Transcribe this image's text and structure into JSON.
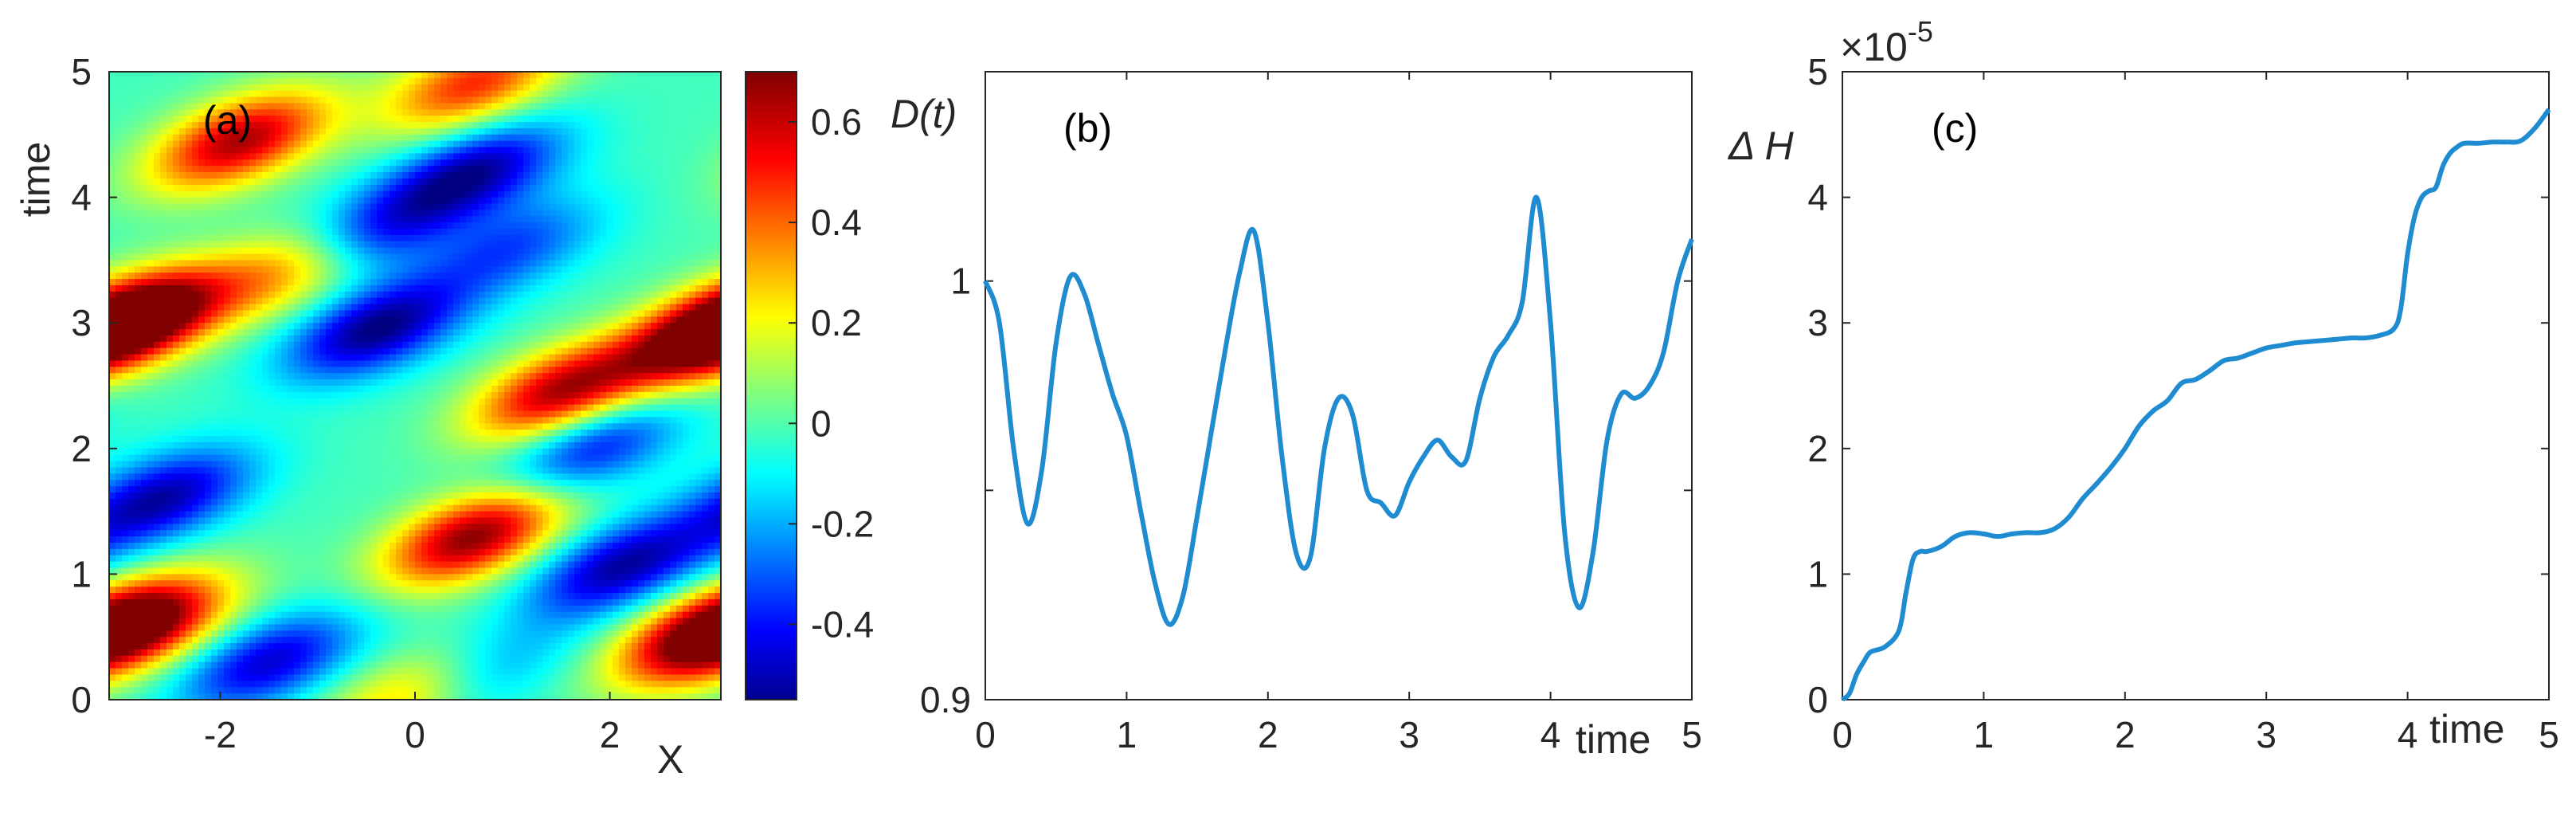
{
  "chart_data": [
    {
      "id": "a",
      "type": "heatmap",
      "panel_label": "(a)",
      "xlabel": "X",
      "ylabel": "time",
      "xlim": [
        -3.14,
        3.14
      ],
      "ylim": [
        0,
        5
      ],
      "x_ticks": [
        -2,
        0,
        2
      ],
      "x_tick_labels": [
        "-2",
        "0",
        "2"
      ],
      "y_ticks": [
        0,
        1,
        2,
        3,
        4,
        5
      ],
      "y_tick_labels": [
        "0",
        "1",
        "2",
        "3",
        "4",
        "5"
      ],
      "colormap": "jet",
      "clim": [
        -0.55,
        0.7
      ],
      "colorbar_ticks": [
        0.6,
        0.4,
        0.2,
        0,
        -0.2,
        -0.4
      ],
      "colorbar_tick_labels": [
        "0.6",
        "0.4",
        "0.2",
        "0",
        "-0.2",
        "-0.4"
      ],
      "field": {
        "description": "traveling wave pattern moving toward +X over time",
        "blobs": [
          {
            "x": -1.8,
            "t": 4.45,
            "amp": 0.65
          },
          {
            "x": 0.6,
            "t": 4.9,
            "amp": 0.5
          },
          {
            "x": -2.8,
            "t": 3.05,
            "amp": 0.65
          },
          {
            "x": -1.2,
            "t": 3.45,
            "amp": 0.45
          },
          {
            "x": 1.5,
            "t": 2.45,
            "amp": 0.65
          },
          {
            "x": 3.0,
            "t": 2.9,
            "amp": 0.6
          },
          {
            "x": 0.6,
            "t": 1.3,
            "amp": 0.7
          },
          {
            "x": -2.8,
            "t": 0.6,
            "amp": 0.6
          },
          {
            "x": 2.9,
            "t": 0.5,
            "amp": 0.55
          },
          {
            "x": 0.0,
            "t": 0.05,
            "amp": 0.4
          },
          {
            "x": 0.6,
            "t": 4.2,
            "amp": -0.5
          },
          {
            "x": -0.5,
            "t": 3.7,
            "amp": -0.45
          },
          {
            "x": -0.4,
            "t": 2.95,
            "amp": -0.55
          },
          {
            "x": 1.0,
            "t": 3.6,
            "amp": -0.3
          },
          {
            "x": -2.6,
            "t": 1.6,
            "amp": -0.5
          },
          {
            "x": 1.8,
            "t": 2.0,
            "amp": -0.4
          },
          {
            "x": 2.1,
            "t": 1.05,
            "amp": -0.5
          },
          {
            "x": -1.5,
            "t": 0.3,
            "amp": -0.45
          },
          {
            "x": 0.6,
            "t": 0.2,
            "amp": -0.3
          }
        ]
      }
    },
    {
      "id": "b",
      "type": "line",
      "panel_label": "(b)",
      "ylabel": "D(t)",
      "xlabel": "time",
      "xlim": [
        0,
        5
      ],
      "ylim": [
        0.9,
        1.05
      ],
      "x_ticks": [
        0,
        1,
        2,
        3,
        4,
        5
      ],
      "x_tick_labels": [
        "0",
        "1",
        "2",
        "3",
        "4",
        "5"
      ],
      "y_ticks": [
        0.9,
        1
      ],
      "y_tick_labels": [
        "0.9",
        "1"
      ],
      "minor_y_ticks": [
        0.95
      ],
      "color": "#1f8bd0",
      "x": [
        0,
        0.1,
        0.2,
        0.3,
        0.4,
        0.5,
        0.6,
        0.7,
        0.8,
        0.9,
        1.0,
        1.1,
        1.2,
        1.3,
        1.4,
        1.5,
        1.6,
        1.7,
        1.8,
        1.9,
        2.0,
        2.1,
        2.2,
        2.3,
        2.4,
        2.5,
        2.6,
        2.7,
        2.8,
        2.9,
        3.0,
        3.1,
        3.2,
        3.3,
        3.4,
        3.5,
        3.6,
        3.7,
        3.8,
        3.9,
        4.0,
        4.1,
        4.2,
        4.3,
        4.4,
        4.5,
        4.6,
        4.7,
        4.8,
        4.9,
        5.0
      ],
      "y": [
        1.0,
        0.99,
        0.96,
        0.942,
        0.955,
        0.985,
        1.001,
        0.997,
        0.985,
        0.973,
        0.963,
        0.945,
        0.928,
        0.918,
        0.925,
        0.944,
        0.964,
        0.984,
        1.002,
        1.012,
        0.99,
        0.958,
        0.935,
        0.934,
        0.96,
        0.972,
        0.968,
        0.95,
        0.947,
        0.944,
        0.952,
        0.958,
        0.962,
        0.958,
        0.957,
        0.972,
        0.982,
        0.987,
        0.995,
        1.02,
        0.99,
        0.94,
        0.922,
        0.935,
        0.962,
        0.973,
        0.972,
        0.975,
        0.983,
        1.0,
        1.01
      ]
    },
    {
      "id": "c",
      "type": "line",
      "panel_label": "(c)",
      "ylabel": "Δ H",
      "xlabel": "time",
      "exponent_label": "×10",
      "exponent_power": "-5",
      "xlim": [
        0,
        5
      ],
      "ylim": [
        0,
        5
      ],
      "x_ticks": [
        0,
        1,
        2,
        3,
        4,
        5
      ],
      "x_tick_labels": [
        "0",
        "1",
        "2",
        "3",
        "4",
        "5"
      ],
      "y_ticks": [
        0,
        1,
        2,
        3,
        4,
        5
      ],
      "y_tick_labels": [
        "0",
        "1",
        "2",
        "3",
        "4",
        "5"
      ],
      "color": "#1f8bd0",
      "x": [
        0,
        0.05,
        0.1,
        0.15,
        0.2,
        0.3,
        0.4,
        0.45,
        0.5,
        0.55,
        0.6,
        0.7,
        0.8,
        0.9,
        1.0,
        1.1,
        1.2,
        1.3,
        1.4,
        1.5,
        1.6,
        1.7,
        1.8,
        1.9,
        2.0,
        2.1,
        2.2,
        2.3,
        2.4,
        2.5,
        2.6,
        2.7,
        2.8,
        2.9,
        3.0,
        3.1,
        3.2,
        3.3,
        3.4,
        3.5,
        3.6,
        3.7,
        3.8,
        3.9,
        3.95,
        4.0,
        4.05,
        4.1,
        4.15,
        4.2,
        4.25,
        4.3,
        4.35,
        4.4,
        4.5,
        4.6,
        4.7,
        4.8,
        4.9,
        5.0
      ],
      "y": [
        0.0,
        0.05,
        0.2,
        0.3,
        0.38,
        0.42,
        0.55,
        0.85,
        1.12,
        1.18,
        1.18,
        1.22,
        1.3,
        1.33,
        1.32,
        1.3,
        1.32,
        1.33,
        1.33,
        1.36,
        1.45,
        1.6,
        1.72,
        1.85,
        2.0,
        2.18,
        2.3,
        2.38,
        2.52,
        2.55,
        2.62,
        2.7,
        2.72,
        2.76,
        2.8,
        2.82,
        2.84,
        2.85,
        2.86,
        2.87,
        2.88,
        2.88,
        2.9,
        2.95,
        3.1,
        3.55,
        3.85,
        4.0,
        4.05,
        4.08,
        4.25,
        4.35,
        4.4,
        4.43,
        4.43,
        4.44,
        4.44,
        4.45,
        4.55,
        4.7
      ]
    }
  ]
}
